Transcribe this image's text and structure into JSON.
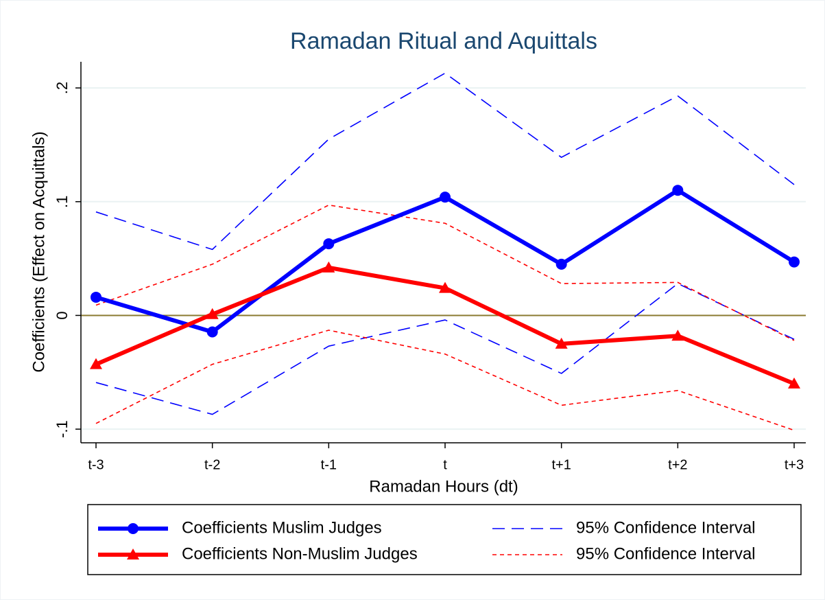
{
  "chart_data": {
    "type": "line",
    "title": "Ramadan Ritual and Aquittals",
    "x_label": "Ramadan Hours (dt)",
    "y_label": "Coefficients (Effect on Acquittals)",
    "categories": [
      "t-3",
      "t-2",
      "t-1",
      "t",
      "t+1",
      "t+2",
      "t+3"
    ],
    "series": [
      {
        "name": "Coefficients Muslim Judges",
        "color": "#0000ff",
        "style": "solid",
        "marker": "circle",
        "values": [
          0.016,
          -0.0145,
          0.063,
          0.104,
          0.045,
          0.11,
          0.047
        ]
      },
      {
        "name": "Coefficients Non-Muslim Judges",
        "color": "#ff0000",
        "style": "solid",
        "marker": "triangle",
        "values": [
          -0.043,
          0.001,
          0.042,
          0.024,
          -0.025,
          -0.018,
          -0.06
        ]
      },
      {
        "name": "95% Confidence Interval",
        "color": "#0000ff",
        "style": "longdash",
        "values": [
          0.091,
          0.058,
          0.155,
          0.213,
          0.139,
          0.193,
          0.115
        ]
      },
      {
        "name": "95% Confidence Interval",
        "color": "#ff0000",
        "style": "shortdash",
        "values": [
          0.009,
          0.045,
          0.097,
          0.081,
          0.028,
          0.029,
          -0.022
        ]
      }
    ],
    "lower_bounds": [
      {
        "color": "#0000ff",
        "style": "longdash",
        "values": [
          -0.059,
          -0.087,
          -0.027,
          -0.004,
          -0.051,
          0.028,
          -0.021
        ]
      },
      {
        "color": "#ff0000",
        "style": "shortdash",
        "values": [
          -0.095,
          -0.043,
          -0.013,
          -0.034,
          -0.079,
          -0.066,
          -0.101
        ]
      }
    ],
    "ylim": [
      -0.112,
      0.223
    ],
    "yticks": [
      {
        "value": -0.1,
        "label": "-.1"
      },
      0,
      {
        "value": 0.1,
        "label": ".1"
      },
      {
        "value": 0.2,
        "label": ".2"
      }
    ],
    "grid": true,
    "yline": {
      "value": 0,
      "color": "#8a7a30"
    },
    "legend": "bottom"
  }
}
